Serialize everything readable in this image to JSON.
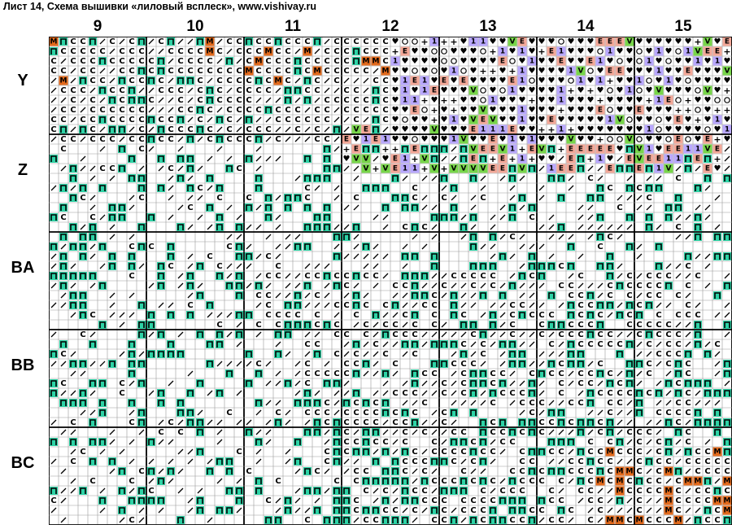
{
  "title": "Лист 14, Схема вышивки «лиловый всплеск», www.vishivay.ru",
  "column_labels": [
    "9",
    "10",
    "11",
    "12",
    "13",
    "14",
    "15"
  ],
  "row_labels": [
    "Y",
    "Z",
    "BA",
    "BB",
    "BC"
  ],
  "colors": {
    "grid_thin": "#9a9a9a",
    "grid_thick": "#000000",
    "teal": "#2ed3a6",
    "orange": "#e36a1c",
    "salmon": "#f4a898",
    "green": "#78d64a",
    "lavender": "#b9a8ff",
    "purple_border": "#7a4fd6"
  },
  "symbol_legend": {
    "С": "white",
    "М": "orange",
    "Е": "salmon",
    "V": "green",
    "П": "teal",
    "1": "lavender",
    "♥": "black-heart",
    "◎": "white",
    "/": "white",
    "+": "white",
    "К": "white"
  }
}
